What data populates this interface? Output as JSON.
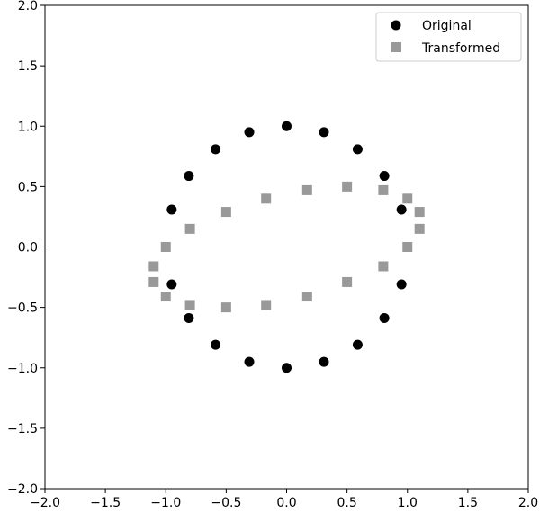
{
  "chart_data": {
    "type": "scatter",
    "xlim": [
      -2.0,
      2.0
    ],
    "ylim": [
      -2.0,
      2.0
    ],
    "xticks": [
      "−2.0",
      "−1.5",
      "−1.0",
      "−0.5",
      "0.0",
      "0.5",
      "1.0",
      "1.5",
      "2.0"
    ],
    "yticks": [
      "−2.0",
      "−1.5",
      "−1.0",
      "−0.5",
      "0.0",
      "0.5",
      "1.0",
      "1.5",
      "2.0"
    ],
    "grid": false,
    "legend": "top-right",
    "series": [
      {
        "name": "Original",
        "marker": "circle",
        "color": "#000000",
        "x": [
          0.0,
          0.309,
          0.588,
          0.809,
          0.951,
          0.951,
          0.809,
          0.588,
          0.309,
          0.0,
          -0.309,
          -0.588,
          -0.809,
          -0.951,
          -0.951,
          -0.809,
          -0.588,
          -0.309
        ],
        "y": [
          1.0,
          0.951,
          0.809,
          0.588,
          0.309,
          -0.309,
          -0.588,
          -0.809,
          -0.951,
          -1.0,
          -0.951,
          -0.809,
          -0.588,
          -0.309,
          0.309,
          0.588,
          0.809,
          0.951
        ]
      },
      {
        "name": "Transformed",
        "marker": "square",
        "color": "#999999",
        "x": [
          0.5,
          0.8,
          1.0,
          1.1,
          1.1,
          1.0,
          0.8,
          0.5,
          0.17,
          -0.17,
          -0.5,
          -0.8,
          -1.0,
          -1.1,
          -1.1,
          -1.0,
          -0.8,
          -0.5,
          -0.17,
          0.17
        ],
        "y": [
          0.5,
          0.47,
          0.4,
          0.29,
          0.15,
          0.0,
          -0.16,
          -0.29,
          -0.41,
          -0.48,
          -0.5,
          -0.48,
          -0.41,
          -0.29,
          -0.16,
          0.0,
          0.15,
          0.29,
          0.4,
          0.47
        ]
      }
    ]
  }
}
